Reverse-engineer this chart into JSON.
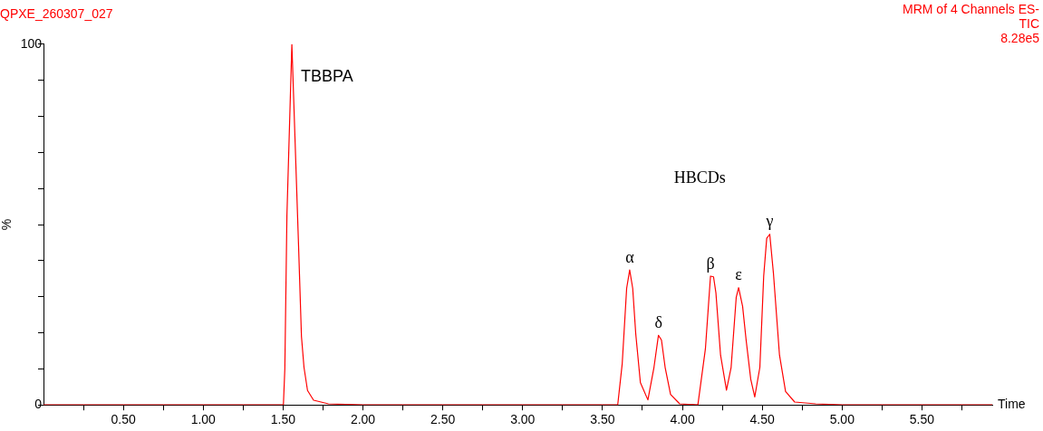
{
  "chart_data": {
    "type": "line",
    "title": "QPXE_260307_027",
    "subtitle": "MRM of 4 Channels ES-\nTIC\n8.28e5",
    "xlabel": "Time",
    "ylabel": "%",
    "annotations": [
      {
        "text": "TBBPA",
        "x": 1.555,
        "y": 100
      },
      "HBCDs",
      {
        "text": "α",
        "x": 3.67,
        "y": 37.4
      },
      {
        "text": "δ",
        "x": 3.85,
        "y": 19.3
      },
      {
        "text": "β",
        "x": 4.176,
        "y": 35.7
      },
      {
        "text": "ε",
        "x": 4.352,
        "y": 32.5
      },
      {
        "text": "γ",
        "x": 4.547,
        "y": 47.3
      }
    ],
    "series": [
      {
        "color": "#ff0000",
        "x": [
          0,
          0.5,
          1.0,
          1.49,
          1.502,
          1.511,
          1.524,
          1.555,
          1.597,
          1.615,
          1.631,
          1.653,
          1.691,
          1.784,
          2.0,
          2.5,
          3.0,
          3.5,
          3.595,
          3.623,
          3.651,
          3.67,
          3.689,
          3.708,
          3.737,
          3.784,
          3.822,
          3.85,
          3.869,
          3.892,
          3.926,
          3.983,
          4.097,
          4.144,
          4.176,
          4.195,
          4.21,
          4.239,
          4.276,
          4.305,
          4.337,
          4.352,
          4.377,
          4.399,
          4.428,
          4.453,
          4.485,
          4.509,
          4.528,
          4.547,
          4.57,
          4.608,
          4.646,
          4.703,
          4.835,
          5.0,
          5.5,
          5.94
        ],
        "values": [
          0,
          0,
          0,
          0,
          0,
          10,
          52.5,
          100,
          44,
          19,
          10.4,
          4,
          1.3,
          0.3,
          0,
          0,
          0,
          0,
          0,
          11.3,
          32.3,
          37.4,
          32.3,
          19.7,
          6.2,
          1.4,
          10.4,
          19.3,
          18,
          10.4,
          2.9,
          0.3,
          0,
          15.5,
          35.7,
          35.5,
          31,
          13.8,
          4.1,
          10.4,
          29.8,
          32.5,
          27.3,
          18,
          7.1,
          2.2,
          10.4,
          35.7,
          46.2,
          47.3,
          36.5,
          13.8,
          3.7,
          0.8,
          0.3,
          0,
          0,
          0
        ]
      }
    ],
    "xlim": [
      0,
      5.94
    ],
    "xticks": [
      {
        "value": 0.25,
        "label": null
      },
      {
        "value": 0.5,
        "label": "0.50"
      },
      {
        "value": 0.75,
        "label": null
      },
      {
        "value": 1,
        "label": "1.00"
      },
      {
        "value": 1.25,
        "label": null
      },
      {
        "value": 1.5,
        "label": "1.50"
      },
      {
        "value": 1.75,
        "label": null
      },
      {
        "value": 2,
        "label": "2.00"
      },
      {
        "value": 2.25,
        "label": null
      },
      {
        "value": 2.5,
        "label": "2.50"
      },
      {
        "value": 2.75,
        "label": null
      },
      {
        "value": 3,
        "label": "3.00"
      },
      {
        "value": 3.25,
        "label": null
      },
      {
        "value": 3.5,
        "label": "3.50"
      },
      {
        "value": 3.75,
        "label": null
      },
      {
        "value": 4,
        "label": "4.00"
      },
      {
        "value": 4.25,
        "label": null
      },
      {
        "value": 4.5,
        "label": "4.50"
      },
      {
        "value": 4.75,
        "label": null
      },
      {
        "value": 5,
        "label": "5.00"
      },
      {
        "value": 5.25,
        "label": null
      },
      {
        "value": 5.5,
        "label": "5.50"
      },
      {
        "value": 5.75,
        "label": null
      }
    ],
    "ylim": [
      0,
      100
    ],
    "yticks": [
      {
        "value": 0,
        "label": "0"
      },
      {
        "value": 10,
        "label": null
      },
      {
        "value": 20,
        "label": null
      },
      {
        "value": 30,
        "label": null
      },
      {
        "value": 40,
        "label": null
      },
      {
        "value": 50,
        "label": null
      },
      {
        "value": 60,
        "label": null
      },
      {
        "value": 70,
        "label": null
      },
      {
        "value": 80,
        "label": null
      },
      {
        "value": 90,
        "label": null
      },
      {
        "value": 100,
        "label": "100"
      }
    ],
    "grid": false,
    "legend": false,
    "marker": "none",
    "line_style": "solid"
  }
}
